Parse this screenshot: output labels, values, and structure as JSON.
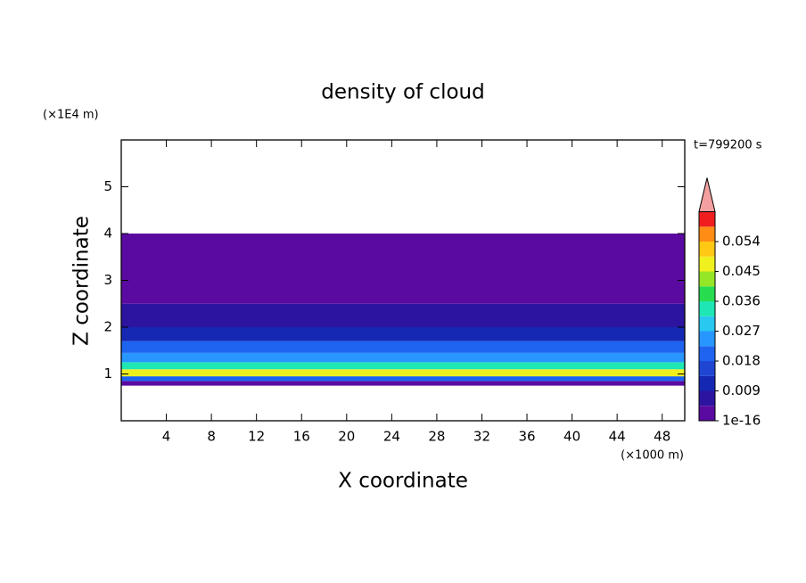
{
  "chart_data": {
    "type": "contour",
    "title": "density of cloud",
    "xlabel": "X coordinate",
    "ylabel": "Z coordinate",
    "x_unit": "(×1000 m)",
    "y_unit": "(×1E4 m)",
    "time_label": "t=799200 s",
    "xlim": [
      0,
      50
    ],
    "ylim": [
      0,
      6
    ],
    "xticks": [
      4,
      8,
      12,
      16,
      20,
      24,
      28,
      32,
      36,
      40,
      44,
      48
    ],
    "yticks": [
      1,
      2,
      3,
      4,
      5
    ],
    "z_edges": [
      0.75,
      0.85,
      0.95,
      1.1,
      1.25,
      1.45,
      1.7,
      2.0,
      2.5,
      3.0,
      4.0
    ],
    "density": [
      0.003,
      0.02,
      0.045,
      0.035,
      0.025,
      0.018,
      0.013,
      0.008,
      0.004,
      0.001
    ],
    "colorbar": {
      "clim": [
        0,
        0.063
      ],
      "ticks": [
        1e-16,
        0.009,
        0.018,
        0.027,
        0.036,
        0.045,
        0.054
      ],
      "colors": [
        "#5a0aa0",
        "#2d14a0",
        "#1428b4",
        "#1e46d2",
        "#1e64f0",
        "#2896ff",
        "#28c8f0",
        "#1ee6b4",
        "#28dc50",
        "#96e628",
        "#f0f01e",
        "#ffc814",
        "#ff8c14",
        "#f01e1e"
      ],
      "extend_color": "#f4a0a0"
    }
  }
}
